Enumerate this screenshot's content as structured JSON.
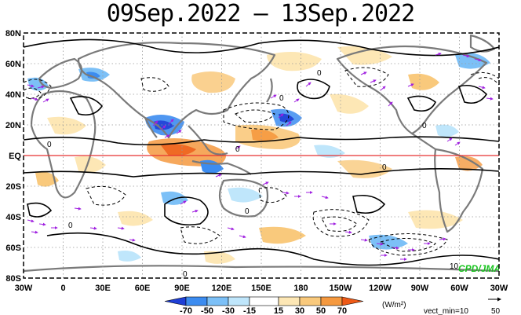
{
  "title": "09Sep.2022 – 13Sep.2022",
  "map": {
    "lat_ticks": [
      "80N",
      "60N",
      "40N",
      "20N",
      "EQ",
      "20S",
      "40S",
      "60S",
      "80S"
    ],
    "lon_ticks": [
      "30W",
      "0",
      "30E",
      "60E",
      "90E",
      "120E",
      "150E",
      "180",
      "150W",
      "120W",
      "90W",
      "60W",
      "30W"
    ],
    "equator_color": "#e83030",
    "logo": "CPD/JMA",
    "contour_label": "10",
    "zero_labels": [
      "0",
      "0",
      "0",
      "0",
      "0",
      "0",
      "0",
      "0",
      "0"
    ]
  },
  "colorbar": {
    "ticks": [
      "-70",
      "-50",
      "-30",
      "-15",
      "15",
      "30",
      "50",
      "70"
    ],
    "colors": [
      "#1f3fd6",
      "#3c8cf0",
      "#7cc0f7",
      "#bfe6fb",
      "#ffffff",
      "#fde7b5",
      "#f9c97c",
      "#f5993f",
      "#ee5a17"
    ],
    "units": "(W/m²)",
    "vector_note": "vect_min=10",
    "ref_vector": "50"
  }
}
